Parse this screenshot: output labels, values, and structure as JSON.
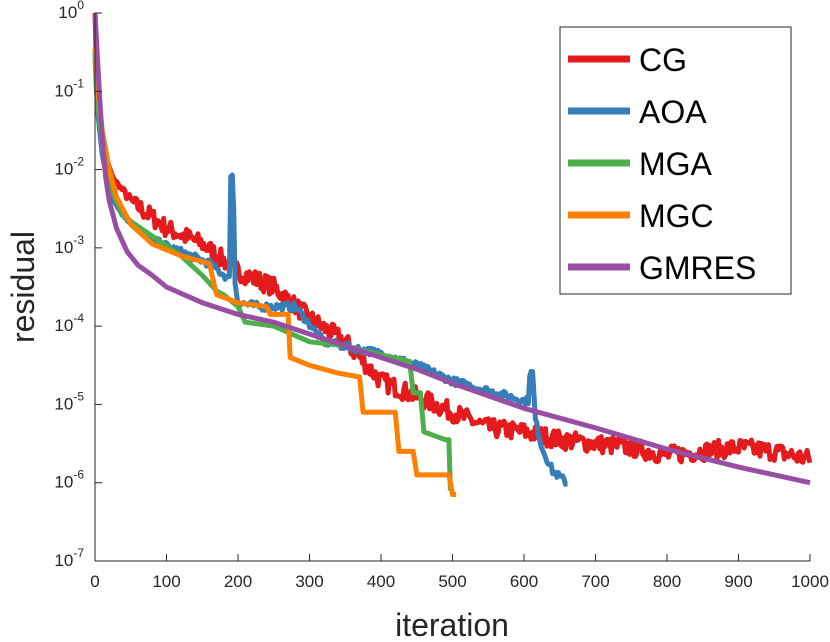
{
  "chart_data": {
    "type": "line",
    "title": "",
    "xlabel": "iteration",
    "ylabel": "residual",
    "xlim": [
      0,
      1000
    ],
    "ylim_log10": [
      -7,
      0
    ],
    "yscale": "log",
    "x_ticks": [
      {
        "value": 0,
        "label": "0"
      },
      {
        "value": 100,
        "label": "100"
      },
      {
        "value": 200,
        "label": "200"
      },
      {
        "value": 300,
        "label": "300"
      },
      {
        "value": 400,
        "label": "400"
      },
      {
        "value": 500,
        "label": "500"
      },
      {
        "value": 600,
        "label": "600"
      },
      {
        "value": 700,
        "label": "700"
      },
      {
        "value": 800,
        "label": "800"
      },
      {
        "value": 900,
        "label": "900"
      },
      {
        "value": 1000,
        "label": "1000"
      }
    ],
    "y_ticks": [
      {
        "exp": 0,
        "base": "10",
        "sup": "0"
      },
      {
        "exp": -1,
        "base": "10",
        "sup": "-1"
      },
      {
        "exp": -2,
        "base": "10",
        "sup": "-2"
      },
      {
        "exp": -3,
        "base": "10",
        "sup": "-3"
      },
      {
        "exp": -4,
        "base": "10",
        "sup": "-4"
      },
      {
        "exp": -5,
        "base": "10",
        "sup": "-5"
      },
      {
        "exp": -6,
        "base": "10",
        "sup": "-6"
      },
      {
        "exp": -7,
        "base": "10",
        "sup": "-7"
      }
    ],
    "legend_position": "top-right",
    "grid": false,
    "series": [
      {
        "name": "CG",
        "color": "#e41a1c",
        "noise": 0.12,
        "points": [
          [
            0,
            0
          ],
          [
            3,
            -1.0
          ],
          [
            10,
            -1.7
          ],
          [
            25,
            -2.1
          ],
          [
            50,
            -2.4
          ],
          [
            100,
            -2.75
          ],
          [
            150,
            -2.95
          ],
          [
            200,
            -3.3
          ],
          [
            250,
            -3.5
          ],
          [
            300,
            -3.9
          ],
          [
            350,
            -4.2
          ],
          [
            400,
            -4.7
          ],
          [
            450,
            -4.9
          ],
          [
            500,
            -5.1
          ],
          [
            550,
            -5.3
          ],
          [
            600,
            -5.35
          ],
          [
            650,
            -5.45
          ],
          [
            700,
            -5.5
          ],
          [
            750,
            -5.55
          ],
          [
            800,
            -5.65
          ],
          [
            850,
            -5.6
          ],
          [
            900,
            -5.55
          ],
          [
            950,
            -5.6
          ],
          [
            1000,
            -5.7
          ]
        ]
      },
      {
        "name": "AOA",
        "color": "#377eb8",
        "noise": 0.05,
        "points": [
          [
            0,
            -0.5
          ],
          [
            3,
            -1.2
          ],
          [
            10,
            -1.8
          ],
          [
            20,
            -2.3
          ],
          [
            40,
            -2.6
          ],
          [
            80,
            -2.9
          ],
          [
            120,
            -3.05
          ],
          [
            160,
            -3.2
          ],
          [
            188,
            -3.4
          ],
          [
            190,
            -2.05
          ],
          [
            193,
            -2.05
          ],
          [
            196,
            -3.45
          ],
          [
            200,
            -3.7
          ],
          [
            230,
            -3.75
          ],
          [
            280,
            -3.75
          ],
          [
            320,
            -4.2
          ],
          [
            400,
            -4.35
          ],
          [
            450,
            -4.5
          ],
          [
            500,
            -4.7
          ],
          [
            600,
            -4.95
          ],
          [
            606,
            -4.95
          ],
          [
            608,
            -4.6
          ],
          [
            612,
            -4.6
          ],
          [
            616,
            -5.2
          ],
          [
            625,
            -5.55
          ],
          [
            640,
            -5.85
          ],
          [
            660,
            -6.0
          ]
        ]
      },
      {
        "name": "MGA",
        "color": "#4daf4a",
        "noise": 0,
        "points": [
          [
            0,
            -0.6
          ],
          [
            4,
            -1.2
          ],
          [
            12,
            -1.8
          ],
          [
            20,
            -2.2
          ],
          [
            40,
            -2.6
          ],
          [
            80,
            -2.85
          ],
          [
            120,
            -3.1
          ],
          [
            150,
            -3.35
          ],
          [
            170,
            -3.55
          ],
          [
            180,
            -3.6
          ],
          [
            200,
            -3.75
          ],
          [
            210,
            -3.95
          ],
          [
            250,
            -4.0
          ],
          [
            300,
            -4.2
          ],
          [
            350,
            -4.25
          ],
          [
            370,
            -4.3
          ],
          [
            440,
            -4.45
          ],
          [
            445,
            -4.85
          ],
          [
            455,
            -4.85
          ],
          [
            460,
            -5.35
          ],
          [
            490,
            -5.45
          ],
          [
            495,
            -5.45
          ],
          [
            497,
            -6.1
          ]
        ]
      },
      {
        "name": "MGC",
        "color": "#ff7f00",
        "noise": 0,
        "points": [
          [
            0,
            -0.45
          ],
          [
            4,
            -1.0
          ],
          [
            10,
            -1.5
          ],
          [
            20,
            -2.0
          ],
          [
            30,
            -2.35
          ],
          [
            50,
            -2.7
          ],
          [
            80,
            -2.95
          ],
          [
            120,
            -3.1
          ],
          [
            160,
            -3.2
          ],
          [
            170,
            -3.6
          ],
          [
            200,
            -3.7
          ],
          [
            240,
            -3.75
          ],
          [
            245,
            -3.85
          ],
          [
            270,
            -3.85
          ],
          [
            273,
            -4.4
          ],
          [
            300,
            -4.5
          ],
          [
            320,
            -4.55
          ],
          [
            340,
            -4.6
          ],
          [
            370,
            -4.65
          ],
          [
            375,
            -5.1
          ],
          [
            420,
            -5.1
          ],
          [
            425,
            -5.6
          ],
          [
            445,
            -5.6
          ],
          [
            450,
            -5.9
          ],
          [
            495,
            -5.9
          ],
          [
            500,
            -6.15
          ],
          [
            505,
            -6.15
          ]
        ]
      },
      {
        "name": "GMRES",
        "color": "#984ea3",
        "noise": 0,
        "points": [
          [
            0,
            0
          ],
          [
            3,
            -0.5
          ],
          [
            6,
            -1.0
          ],
          [
            10,
            -1.6
          ],
          [
            15,
            -2.1
          ],
          [
            20,
            -2.4
          ],
          [
            30,
            -2.75
          ],
          [
            45,
            -3.05
          ],
          [
            60,
            -3.22
          ],
          [
            80,
            -3.35
          ],
          [
            100,
            -3.5
          ],
          [
            150,
            -3.7
          ],
          [
            200,
            -3.85
          ],
          [
            250,
            -3.95
          ],
          [
            300,
            -4.1
          ],
          [
            350,
            -4.25
          ],
          [
            400,
            -4.4
          ],
          [
            450,
            -4.55
          ],
          [
            500,
            -4.73
          ],
          [
            600,
            -5.05
          ],
          [
            700,
            -5.3
          ],
          [
            800,
            -5.57
          ],
          [
            900,
            -5.8
          ],
          [
            1000,
            -6.0
          ]
        ]
      }
    ]
  }
}
